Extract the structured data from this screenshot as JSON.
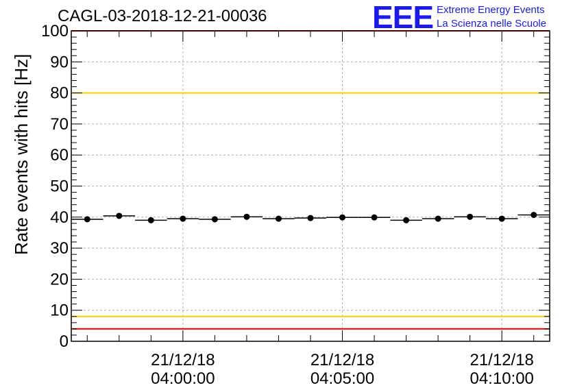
{
  "chart_data": {
    "type": "scatter",
    "title": "CAGL-03-2018-12-21-00036",
    "ylabel": "Rate events with hits [Hz]",
    "xlabel": "",
    "ylim": [
      0,
      100
    ],
    "yticks": [
      0,
      10,
      20,
      30,
      40,
      50,
      60,
      70,
      80,
      90,
      100
    ],
    "yticklabels": [
      "0",
      "10",
      "20",
      "30",
      "40",
      "50",
      "60",
      "70",
      "80",
      "90",
      "100"
    ],
    "xlim_minutes": [
      -3.5,
      11.5
    ],
    "xticks": [
      {
        "minute": 0,
        "date": "21/12/18",
        "time": "04:00:00"
      },
      {
        "minute": 5,
        "date": "21/12/18",
        "time": "04:05:00"
      },
      {
        "minute": 10,
        "date": "21/12/18",
        "time": "04:10:00"
      }
    ],
    "points": {
      "x_minutes": [
        -3,
        -2,
        -1,
        0,
        1,
        2,
        3,
        4,
        5,
        6,
        7,
        8,
        9,
        10,
        11
      ],
      "y": [
        39.3,
        40.4,
        39.0,
        39.5,
        39.3,
        40.1,
        39.5,
        39.7,
        39.9,
        39.9,
        39.0,
        39.5,
        40.1,
        39.5,
        40.7
      ],
      "x_half_width": 0.5
    },
    "reference_lines": [
      {
        "name": "upper-red-limit",
        "y": 100,
        "color": "#ff0000"
      },
      {
        "name": "upper-yellow-limit",
        "y": 80,
        "color": "#f5d000"
      },
      {
        "name": "lower-yellow-limit",
        "y": 8,
        "color": "#f5d000"
      },
      {
        "name": "lower-red-limit",
        "y": 4,
        "color": "#ff0000"
      }
    ],
    "grid": true
  },
  "logo": {
    "mark": "EEE",
    "line1": "Extreme Energy Events",
    "line2": "La Scienza nelle Scuole",
    "color": "#1a1aee"
  }
}
